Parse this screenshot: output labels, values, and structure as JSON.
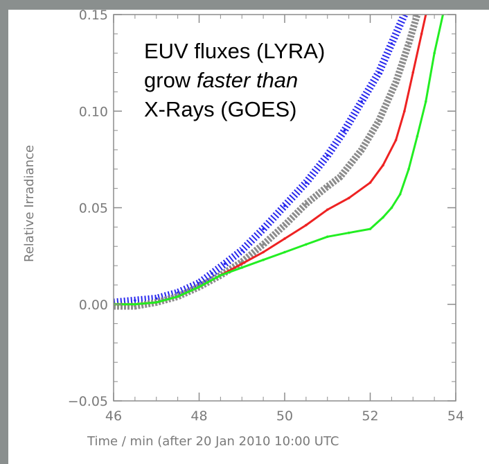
{
  "colors": {
    "background": "#8a8f8e",
    "panel": "#ffffff",
    "axis": "#8c8c8c",
    "text": "#7a7a7a"
  },
  "chart_data": {
    "type": "scatter",
    "title": "",
    "xlabel": "Time / min (after 20 Jan 2010 10:00 UTC",
    "ylabel": "Relative Irradiance",
    "xlim": [
      46,
      54
    ],
    "ylim": [
      -0.05,
      0.15
    ],
    "xticks": [
      "46",
      "48",
      "50",
      "52",
      "54"
    ],
    "yticks": [
      "−0.05",
      "0.00",
      "0.05",
      "0.10",
      "0.15"
    ],
    "grid": false,
    "annotation": {
      "lines": [
        "EUV fluxes (LYRA)",
        "grow ",
        "faster than",
        "X-Rays (GOES)"
      ]
    },
    "series": [
      {
        "color": "#2727ee",
        "style": "dashes",
        "x": [
          46.0,
          46.5,
          47.0,
          47.5,
          48.0,
          48.3,
          48.6,
          49.0,
          49.5,
          50.0,
          50.5,
          51.0,
          51.4,
          51.8,
          52.2,
          52.5,
          52.8
        ],
        "y": [
          0.001,
          0.002,
          0.003,
          0.006,
          0.011,
          0.016,
          0.021,
          0.028,
          0.039,
          0.051,
          0.063,
          0.077,
          0.09,
          0.105,
          0.12,
          0.135,
          0.15
        ]
      },
      {
        "color": "#8c8c8c",
        "style": "thick",
        "x": [
          46.0,
          46.5,
          47.0,
          47.5,
          48.0,
          48.5,
          49.0,
          49.5,
          50.0,
          50.5,
          51.0,
          51.3,
          51.8,
          52.2,
          52.6,
          52.9,
          53.1
        ],
        "y": [
          -0.001,
          -0.001,
          0.001,
          0.004,
          0.009,
          0.015,
          0.022,
          0.031,
          0.041,
          0.052,
          0.061,
          0.066,
          0.08,
          0.095,
          0.115,
          0.135,
          0.15
        ]
      },
      {
        "color": "#ee2222",
        "style": "line",
        "x": [
          46.0,
          46.5,
          47.0,
          47.5,
          48.0,
          48.5,
          49.0,
          49.5,
          50.0,
          50.5,
          51.0,
          51.5,
          52.0,
          52.3,
          52.6,
          52.8,
          53.0,
          53.2,
          53.3
        ],
        "y": [
          0.0,
          0.0,
          0.001,
          0.004,
          0.009,
          0.015,
          0.021,
          0.027,
          0.034,
          0.041,
          0.049,
          0.055,
          0.063,
          0.072,
          0.085,
          0.1,
          0.12,
          0.14,
          0.15
        ]
      },
      {
        "color": "#22ee22",
        "style": "line",
        "x": [
          46.0,
          46.5,
          47.0,
          47.5,
          48.0,
          48.5,
          49.0,
          49.5,
          50.0,
          50.5,
          51.0,
          51.5,
          52.0,
          52.3,
          52.5,
          52.7,
          52.9,
          53.1,
          53.3,
          53.5,
          53.7
        ],
        "y": [
          0.0,
          0.0,
          0.001,
          0.004,
          0.009,
          0.015,
          0.019,
          0.023,
          0.027,
          0.031,
          0.035,
          0.037,
          0.039,
          0.045,
          0.05,
          0.057,
          0.07,
          0.087,
          0.105,
          0.13,
          0.15
        ]
      }
    ]
  }
}
